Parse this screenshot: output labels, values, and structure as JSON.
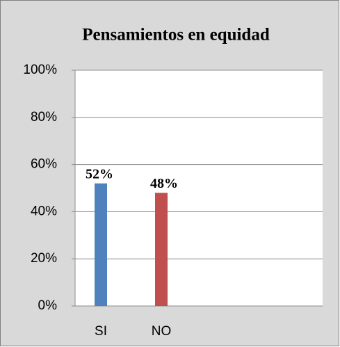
{
  "chart_data": {
    "type": "bar",
    "title": "Pensamientos en equidad",
    "categories": [
      "SI",
      "NO"
    ],
    "values": [
      52,
      48
    ],
    "value_labels": [
      "52%",
      "48%"
    ],
    "colors": [
      "#4f81bd",
      "#c0504d"
    ],
    "ylim": [
      0,
      100
    ],
    "yticks": [
      {
        "value": 0,
        "label": "0%"
      },
      {
        "value": 20,
        "label": "20%"
      },
      {
        "value": 40,
        "label": "40%"
      },
      {
        "value": 60,
        "label": "60%"
      },
      {
        "value": 80,
        "label": "80%"
      },
      {
        "value": 100,
        "label": "100%"
      }
    ],
    "grid": true
  }
}
